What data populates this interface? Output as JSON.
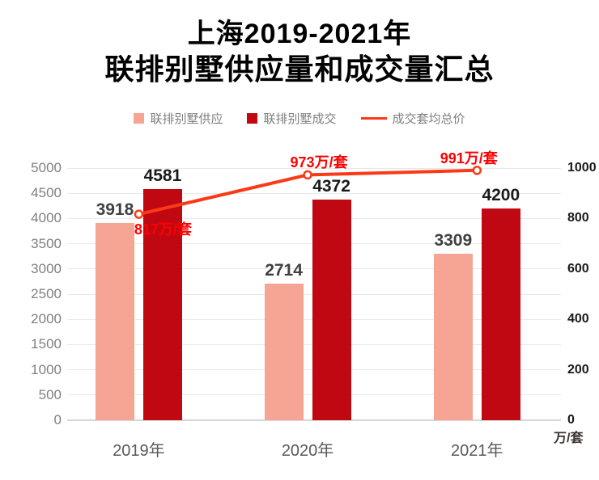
{
  "title": {
    "line1": "上海2019-2021年",
    "line2": "联排别墅供应量和成交量汇总"
  },
  "legend": {
    "items": [
      {
        "label": "联排别墅供应",
        "marker": "square",
        "color": "#F6A493"
      },
      {
        "label": "联排别墅成交",
        "marker": "square",
        "color": "#C00813"
      },
      {
        "label": "成交套均总价",
        "marker": "line",
        "color": "#FA3A17"
      }
    ]
  },
  "chart_data": {
    "type": "bar",
    "title": "上海2019-2021年联排别墅供应量和成交量汇总",
    "categories": [
      "2019年",
      "2020年",
      "2021年"
    ],
    "series": [
      {
        "name": "联排别墅供应",
        "type": "bar",
        "axis": "left",
        "values": [
          3918,
          2714,
          3309
        ],
        "labels": [
          "3918",
          "2714",
          "3309"
        ],
        "color": "#F6A493",
        "label_color": "#404040"
      },
      {
        "name": "联排别墅成交",
        "type": "bar",
        "axis": "left",
        "values": [
          4581,
          4372,
          4200
        ],
        "labels": [
          "4581",
          "4372",
          "4200"
        ],
        "color": "#C00813",
        "label_color": "#1a1a1a"
      },
      {
        "name": "成交套均总价",
        "type": "line",
        "axis": "right",
        "values": [
          817,
          973,
          991
        ],
        "labels": [
          "817万/套",
          "973万/套",
          "991万/套"
        ],
        "color": "#FA3A17",
        "label_color": "#FE0000"
      }
    ],
    "left_axis": {
      "min": 0,
      "max": 5000,
      "ticks": [
        0,
        500,
        1000,
        1500,
        2000,
        2500,
        3000,
        3500,
        4000,
        4500,
        5000
      ]
    },
    "right_axis": {
      "min": 0,
      "max": 1000,
      "ticks": [
        0,
        200,
        400,
        600,
        800,
        1000
      ],
      "unit": "万/套"
    },
    "grid": true,
    "legend_position": "top"
  }
}
